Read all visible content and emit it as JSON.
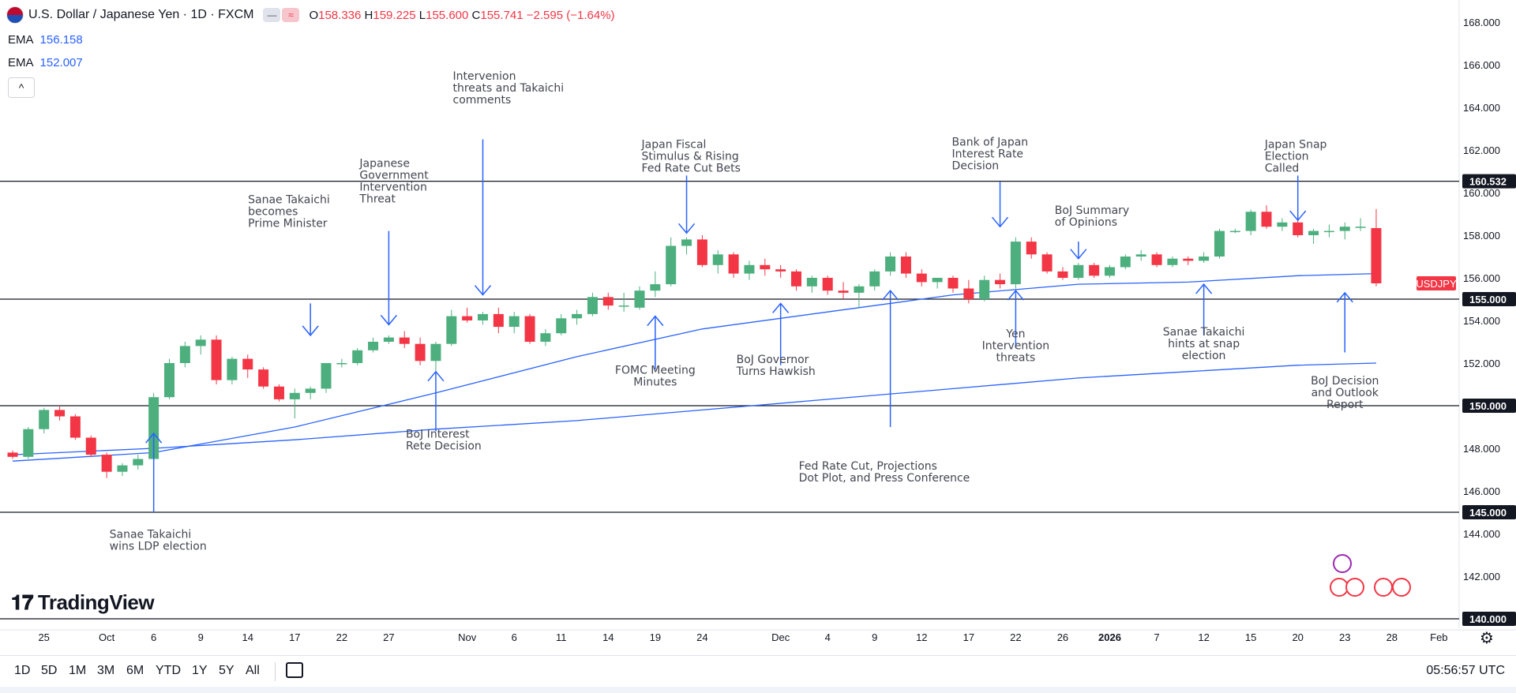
{
  "header": {
    "symbol_title": "U.S. Dollar / Japanese Yen · 1D · FXCM",
    "ohlc": {
      "o_label": "O",
      "o": "158.336",
      "h_label": "H",
      "h": "159.225",
      "l_label": "L",
      "l": "155.600",
      "c_label": "C",
      "c": "155.741",
      "change": "−2.595 (−1.64%)"
    }
  },
  "indicators": [
    {
      "name": "EMA",
      "value": "156.158",
      "color": "#2962ff"
    },
    {
      "name": "EMA",
      "value": "152.007",
      "color": "#2962ff"
    }
  ],
  "collapse_glyph": "^",
  "logo_text": "TradingView",
  "timeframes": [
    "1D",
    "5D",
    "1M",
    "3M",
    "6M",
    "YTD",
    "1Y",
    "5Y",
    "All"
  ],
  "clock": "05:56:57 UTC",
  "colors": {
    "up": "#4caf7d",
    "down": "#f23645",
    "ema": "#2962ff",
    "level": "#131722",
    "text": "#131722",
    "annotation": "#434651"
  },
  "chart_data": {
    "type": "candlestick",
    "symbol_label": "USDJPY",
    "ylim": [
      139,
      169
    ],
    "y_ticks": [
      "140.000",
      "142.000",
      "144.000",
      "146.000",
      "148.000",
      "150.000",
      "152.000",
      "154.000",
      "156.000",
      "158.000",
      "160.000",
      "162.000",
      "164.000",
      "166.000",
      "168.000"
    ],
    "x_ticks": [
      {
        "label": "25",
        "i": 2
      },
      {
        "label": "Oct",
        "i": 6
      },
      {
        "label": "6",
        "i": 9
      },
      {
        "label": "9",
        "i": 12
      },
      {
        "label": "14",
        "i": 15
      },
      {
        "label": "17",
        "i": 18
      },
      {
        "label": "22",
        "i": 21
      },
      {
        "label": "27",
        "i": 24
      },
      {
        "label": "Nov",
        "i": 29
      },
      {
        "label": "6",
        "i": 32
      },
      {
        "label": "11",
        "i": 35
      },
      {
        "label": "14",
        "i": 38
      },
      {
        "label": "19",
        "i": 41
      },
      {
        "label": "24",
        "i": 44
      },
      {
        "label": "Dec",
        "i": 49
      },
      {
        "label": "4",
        "i": 52
      },
      {
        "label": "9",
        "i": 55
      },
      {
        "label": "12",
        "i": 58
      },
      {
        "label": "17",
        "i": 61
      },
      {
        "label": "22",
        "i": 64
      },
      {
        "label": "26",
        "i": 67
      },
      {
        "label": "2026",
        "i": 70
      },
      {
        "label": "7",
        "i": 73
      },
      {
        "label": "12",
        "i": 76
      },
      {
        "label": "15",
        "i": 79
      },
      {
        "label": "20",
        "i": 82
      },
      {
        "label": "23",
        "i": 85
      },
      {
        "label": "28",
        "i": 88
      },
      {
        "label": "Feb",
        "i": 91
      }
    ],
    "candles": [
      [
        147.8,
        147.9,
        147.5,
        147.6
      ],
      [
        147.6,
        149.0,
        147.5,
        148.9
      ],
      [
        148.9,
        149.9,
        148.7,
        149.8
      ],
      [
        149.8,
        150.0,
        149.3,
        149.5
      ],
      [
        149.5,
        149.6,
        148.4,
        148.5
      ],
      [
        148.5,
        148.6,
        147.6,
        147.7
      ],
      [
        147.7,
        147.8,
        146.6,
        146.9
      ],
      [
        146.9,
        147.3,
        146.7,
        147.2
      ],
      [
        147.2,
        147.7,
        147.0,
        147.5
      ],
      [
        147.5,
        150.6,
        147.4,
        150.4
      ],
      [
        150.4,
        152.2,
        150.3,
        152.0
      ],
      [
        152.0,
        153.0,
        151.8,
        152.8
      ],
      [
        152.8,
        153.3,
        152.4,
        153.1
      ],
      [
        153.1,
        153.3,
        151.0,
        151.2
      ],
      [
        151.2,
        152.3,
        151.0,
        152.2
      ],
      [
        152.2,
        152.4,
        151.3,
        151.7
      ],
      [
        151.7,
        151.8,
        150.8,
        150.9
      ],
      [
        150.9,
        151.0,
        150.2,
        150.3
      ],
      [
        150.3,
        150.8,
        149.4,
        150.6
      ],
      [
        150.6,
        150.9,
        150.3,
        150.8
      ],
      [
        150.8,
        152.0,
        150.6,
        152.0
      ],
      [
        152.0,
        152.2,
        151.8,
        152.0
      ],
      [
        152.0,
        152.7,
        151.9,
        152.6
      ],
      [
        152.6,
        153.2,
        152.5,
        153.0
      ],
      [
        153.0,
        153.3,
        152.9,
        153.2
      ],
      [
        153.2,
        153.5,
        152.7,
        152.9
      ],
      [
        152.9,
        153.2,
        151.9,
        152.1
      ],
      [
        152.1,
        153.0,
        151.4,
        152.9
      ],
      [
        152.9,
        154.5,
        152.8,
        154.2
      ],
      [
        154.2,
        154.6,
        153.9,
        154.0
      ],
      [
        154.0,
        154.4,
        153.8,
        154.3
      ],
      [
        154.3,
        154.6,
        153.4,
        153.7
      ],
      [
        153.7,
        154.4,
        153.4,
        154.2
      ],
      [
        154.2,
        154.3,
        152.9,
        153.0
      ],
      [
        153.0,
        153.6,
        152.8,
        153.4
      ],
      [
        153.4,
        154.3,
        153.3,
        154.1
      ],
      [
        154.1,
        154.5,
        153.8,
        154.3
      ],
      [
        154.3,
        155.3,
        154.2,
        155.1
      ],
      [
        155.1,
        155.3,
        154.5,
        154.7
      ],
      [
        154.7,
        155.3,
        154.4,
        154.7
      ],
      [
        154.6,
        155.6,
        154.5,
        155.4
      ],
      [
        155.4,
        156.3,
        155.1,
        155.7
      ],
      [
        155.7,
        157.9,
        155.6,
        157.5
      ],
      [
        157.5,
        157.9,
        157.1,
        157.8
      ],
      [
        157.8,
        158.0,
        156.5,
        156.6
      ],
      [
        156.6,
        157.3,
        156.2,
        157.1
      ],
      [
        157.1,
        157.2,
        156.0,
        156.2
      ],
      [
        156.2,
        156.8,
        155.9,
        156.6
      ],
      [
        156.6,
        156.9,
        156.1,
        156.4
      ],
      [
        156.4,
        156.6,
        156.0,
        156.3
      ],
      [
        156.3,
        156.4,
        155.4,
        155.6
      ],
      [
        155.6,
        156.1,
        155.3,
        156.0
      ],
      [
        156.0,
        156.1,
        155.2,
        155.4
      ],
      [
        155.4,
        155.8,
        155.0,
        155.3
      ],
      [
        155.3,
        155.7,
        154.6,
        155.6
      ],
      [
        155.6,
        156.4,
        155.4,
        156.3
      ],
      [
        156.3,
        157.2,
        156.1,
        157.0
      ],
      [
        157.0,
        157.2,
        156.0,
        156.2
      ],
      [
        156.2,
        156.4,
        155.6,
        155.8
      ],
      [
        155.8,
        156.0,
        155.5,
        156.0
      ],
      [
        156.0,
        156.1,
        155.3,
        155.5
      ],
      [
        155.5,
        155.9,
        154.8,
        155.0
      ],
      [
        155.0,
        156.1,
        154.9,
        155.9
      ],
      [
        155.9,
        156.2,
        155.5,
        155.7
      ],
      [
        155.7,
        157.9,
        155.5,
        157.7
      ],
      [
        157.7,
        157.9,
        156.9,
        157.1
      ],
      [
        157.1,
        157.2,
        156.2,
        156.3
      ],
      [
        156.3,
        156.5,
        155.9,
        156.0
      ],
      [
        156.0,
        156.7,
        155.9,
        156.6
      ],
      [
        156.6,
        156.7,
        156.0,
        156.1
      ],
      [
        156.1,
        156.6,
        156.0,
        156.5
      ],
      [
        156.5,
        157.1,
        156.4,
        157.0
      ],
      [
        157.0,
        157.3,
        156.8,
        157.1
      ],
      [
        157.1,
        157.2,
        156.5,
        156.6
      ],
      [
        156.6,
        157.0,
        156.5,
        156.9
      ],
      [
        156.9,
        157.0,
        156.6,
        156.8
      ],
      [
        156.8,
        157.2,
        156.7,
        157.0
      ],
      [
        157.0,
        158.3,
        156.9,
        158.2
      ],
      [
        158.2,
        158.3,
        158.1,
        158.2
      ],
      [
        158.2,
        159.2,
        158.0,
        159.1
      ],
      [
        159.1,
        159.4,
        158.3,
        158.4
      ],
      [
        158.4,
        158.8,
        158.2,
        158.6
      ],
      [
        158.6,
        158.7,
        157.9,
        158.0
      ],
      [
        158.0,
        158.3,
        157.6,
        158.2
      ],
      [
        158.2,
        158.5,
        157.9,
        158.2
      ],
      [
        158.2,
        158.6,
        157.8,
        158.4
      ],
      [
        158.4,
        158.8,
        158.2,
        158.4
      ],
      [
        158.336,
        159.225,
        155.6,
        155.741
      ]
    ],
    "ema_series": [
      {
        "name": "EMA",
        "label_value": "156.158",
        "points": [
          [
            0,
            147.4
          ],
          [
            9,
            147.8
          ],
          [
            18,
            149.0
          ],
          [
            27,
            150.6
          ],
          [
            36,
            152.3
          ],
          [
            44,
            153.6
          ],
          [
            52,
            154.4
          ],
          [
            60,
            155.2
          ],
          [
            68,
            155.7
          ],
          [
            75,
            155.8
          ],
          [
            82,
            156.1
          ],
          [
            87,
            156.2
          ]
        ]
      },
      {
        "name": "EMA",
        "label_value": "152.007",
        "points": [
          [
            0,
            147.7
          ],
          [
            9,
            148.0
          ],
          [
            18,
            148.4
          ],
          [
            27,
            148.9
          ],
          [
            36,
            149.3
          ],
          [
            44,
            149.8
          ],
          [
            52,
            150.3
          ],
          [
            60,
            150.8
          ],
          [
            68,
            151.3
          ],
          [
            75,
            151.6
          ],
          [
            82,
            151.9
          ],
          [
            87,
            152.0
          ]
        ]
      }
    ],
    "levels": [
      {
        "value": 160.532,
        "label": "160.532"
      },
      {
        "value": 155.0,
        "label": "155.000"
      },
      {
        "value": 150.0,
        "label": "150.000"
      },
      {
        "value": 145.0,
        "label": "145.000"
      },
      {
        "value": 140.0,
        "label": "140.000"
      }
    ],
    "last_price_tag": "USDJPY",
    "annotations": [
      {
        "text": [
          "Sanae Takaichi",
          "wins LDP election"
        ],
        "i": 9,
        "arrow_from": 145,
        "arrow_to": 148.7,
        "dir": "up",
        "text_at": 143.8,
        "align": "start",
        "dx": -56
      },
      {
        "text": [
          "Sanae Takaichi",
          "becomes",
          "Prime Minister"
        ],
        "i": 19,
        "arrow_from": 154.8,
        "arrow_to": 153.3,
        "dir": "down",
        "text_at": 159.5,
        "align": "start",
        "dx": -79
      },
      {
        "text": [
          "Japanese",
          "Government",
          "Intervention",
          "Threat"
        ],
        "i": 24,
        "arrow_from": 158.2,
        "arrow_to": 153.8,
        "dir": "down",
        "text_at": 161.2,
        "align": "start",
        "dx": -37
      },
      {
        "text": [
          "BoJ Interest",
          "Rete Decision"
        ],
        "i": 27,
        "arrow_from": 148.8,
        "arrow_to": 151.6,
        "dir": "up",
        "text_at": 148.5,
        "align": "start",
        "dx": -38
      },
      {
        "text": [
          "Intervenion",
          "threats and Takaichi",
          "comments"
        ],
        "i": 30,
        "arrow_from": 162.5,
        "arrow_to": 155.2,
        "dir": "down",
        "text_at": 165.3,
        "align": "start",
        "dx": -38
      },
      {
        "text": [
          "Japan Fiscal",
          "Stimulus & Rising",
          "Fed Rate Cut Bets"
        ],
        "i": 43,
        "arrow_from": 160.8,
        "arrow_to": 158.1,
        "dir": "down",
        "text_at": 162.1,
        "align": "start",
        "dx": -57
      },
      {
        "text": [
          "FOMC Meeting",
          "Minutes"
        ],
        "i": 41,
        "arrow_from": 151.7,
        "arrow_to": 154.2,
        "dir": "up",
        "text_at": 151.5,
        "align": "middle",
        "dx": 0
      },
      {
        "text": [
          "BoJ Governor",
          "Turns Hawkish"
        ],
        "i": 49,
        "arrow_from": 151.9,
        "arrow_to": 154.8,
        "dir": "up",
        "text_at": 152.0,
        "align": "start",
        "dx": -56
      },
      {
        "text": [
          "Fed Rate Cut, Projections",
          "Dot Plot, and Press Conference"
        ],
        "i": 56,
        "arrow_from": 149.0,
        "arrow_to": 155.4,
        "dir": "up",
        "text_at": 147.0,
        "align": "start",
        "dx": -116
      },
      {
        "text": [
          "Bank of Japan",
          "Interest Rate",
          "Decision"
        ],
        "i": 63,
        "arrow_from": 160.5,
        "arrow_to": 158.4,
        "dir": "down",
        "text_at": 162.2,
        "align": "start",
        "dx": -61
      },
      {
        "text": [
          "Yen",
          "Intervention",
          "threats"
        ],
        "i": 64,
        "arrow_from": 152.7,
        "arrow_to": 155.4,
        "dir": "up",
        "text_at": 153.2,
        "align": "middle",
        "dx": 0
      },
      {
        "text": [
          "BoJ Summary",
          "of Opinions"
        ],
        "i": 68,
        "arrow_from": 157.7,
        "arrow_to": 156.9,
        "dir": "down",
        "text_at": 159.0,
        "align": "start",
        "dx": -30
      },
      {
        "text": [
          "Sanae Takaichi",
          "hints at snap",
          "election"
        ],
        "i": 76,
        "arrow_from": 153.3,
        "arrow_to": 155.7,
        "dir": "up",
        "text_at": 153.3,
        "align": "middle",
        "dx": 0
      },
      {
        "text": [
          "Japan Snap",
          "Election",
          "Called"
        ],
        "i": 82,
        "arrow_from": 160.8,
        "arrow_to": 158.7,
        "dir": "down",
        "text_at": 162.1,
        "align": "start",
        "dx": -42
      },
      {
        "text": [
          "BoJ Decision",
          "and Outlook",
          "Report"
        ],
        "i": 85,
        "arrow_from": 152.5,
        "arrow_to": 155.3,
        "dir": "up",
        "text_at": 151.0,
        "align": "middle",
        "dx": 0
      }
    ]
  }
}
